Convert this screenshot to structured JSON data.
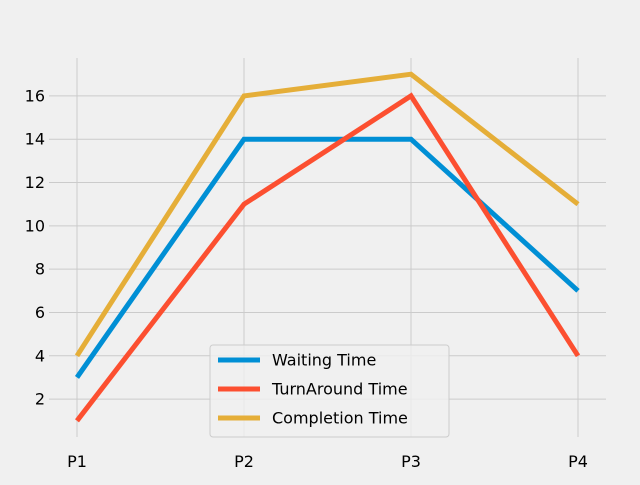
{
  "chart_data": {
    "type": "line",
    "title": "",
    "xlabel": "",
    "ylabel": "",
    "categories": [
      "P1",
      "P2",
      "P3",
      "P4"
    ],
    "ylim": [
      0.25,
      17.75
    ],
    "yticks": [
      2,
      4,
      6,
      8,
      10,
      12,
      14,
      16
    ],
    "grid": true,
    "legend_position": "lower-center",
    "series": [
      {
        "name": "Waiting Time",
        "color": "#008fd5",
        "values": [
          3,
          14,
          14,
          7
        ]
      },
      {
        "name": "TurnAround Time",
        "color": "#fc4f30",
        "values": [
          1,
          11,
          16,
          4
        ]
      },
      {
        "name": "Completion Time",
        "color": "#e5ae38",
        "values": [
          4,
          16,
          17,
          11
        ]
      }
    ]
  }
}
